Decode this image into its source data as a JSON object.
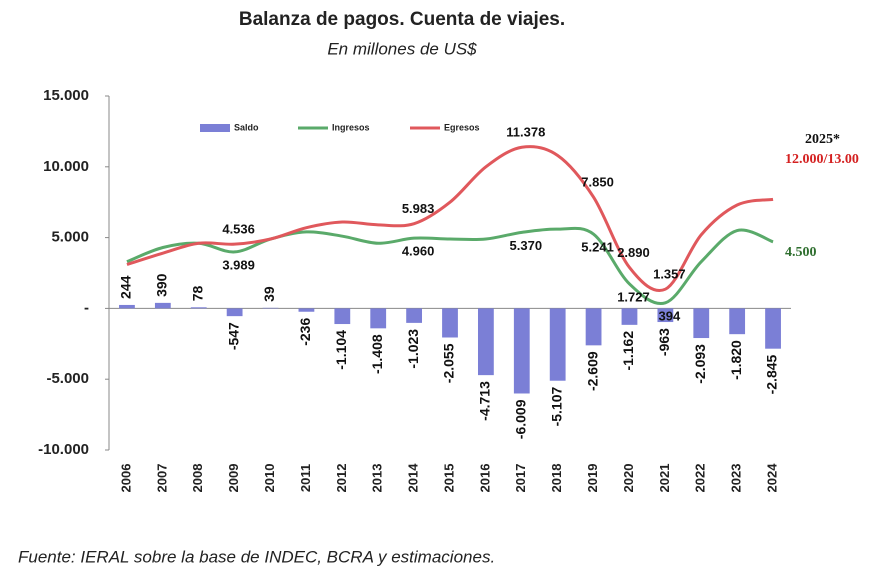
{
  "chart_data": {
    "type": "bar-line",
    "title": "Balanza de pagos. Cuenta de viajes.",
    "subtitle": "En millones de US$",
    "source": "Fuente: IERAL sobre la base de INDEC, BCRA y estimaciones.",
    "categories": [
      "2006",
      "2007",
      "2008",
      "2009",
      "2010",
      "2011",
      "2012",
      "2013",
      "2014",
      "2015",
      "2016",
      "2017",
      "2018",
      "2019",
      "2020",
      "2021",
      "2022",
      "2023",
      "2024"
    ],
    "series": [
      {
        "name": "Saldo",
        "kind": "bar",
        "color": "#7b7fd6",
        "values": [
          244,
          390,
          78,
          -547,
          39,
          -236,
          -1104,
          -1408,
          -1023,
          -2055,
          -4713,
          -6009,
          -5107,
          -2609,
          -1162,
          -963,
          -2093,
          -1820,
          -2845
        ],
        "value_labels": [
          "244",
          "390",
          "78",
          "-547",
          "39",
          "-236",
          "-1.104",
          "-1.408",
          "-1.023",
          "-2.055",
          "-4.713",
          "-6.009",
          "-5.107",
          "-2.609",
          "-1.162",
          "-963",
          "-2.093",
          "-1.820",
          "-2.845"
        ]
      },
      {
        "name": "Ingresos",
        "kind": "line",
        "color": "#5aaa6a",
        "values": [
          3300,
          4300,
          4600,
          3989,
          4900,
          5400,
          5100,
          4600,
          4960,
          4900,
          4900,
          5370,
          5600,
          5241,
          1727,
          394,
          3300,
          5500,
          4700
        ],
        "value_labels": [
          null,
          null,
          null,
          "3.989",
          null,
          null,
          null,
          null,
          "4.960",
          null,
          null,
          "5.370",
          null,
          "5.241",
          "1.727",
          "394",
          null,
          null,
          null
        ]
      },
      {
        "name": "Egresos",
        "kind": "line",
        "color": "#e0585c",
        "values": [
          3100,
          3900,
          4600,
          4536,
          4900,
          5700,
          6100,
          5900,
          5983,
          7500,
          10000,
          11378,
          10800,
          7850,
          2890,
          1357,
          5200,
          7300,
          7700
        ],
        "value_labels": [
          null,
          null,
          null,
          "4.536",
          null,
          null,
          null,
          null,
          "5.983",
          null,
          null,
          "11.378",
          null,
          "7.850",
          "2.890",
          "1.357",
          null,
          null,
          null
        ]
      }
    ],
    "annotations": [
      {
        "text": "2025*",
        "color": "#111111"
      },
      {
        "text": "12.000/13.00",
        "color": "#d42020"
      },
      {
        "text": "4.500",
        "color": "#2e6e2e"
      }
    ],
    "ylim": [
      -10000,
      15000
    ],
    "yticks": [
      {
        "value": -10000,
        "label": "-10.000"
      },
      {
        "value": -5000,
        "label": "-5.000"
      },
      {
        "value": 0,
        "label": "-"
      },
      {
        "value": 5000,
        "label": "5.000"
      },
      {
        "value": 10000,
        "label": "10.000"
      },
      {
        "value": 15000,
        "label": "15.000"
      }
    ],
    "grid": false
  }
}
